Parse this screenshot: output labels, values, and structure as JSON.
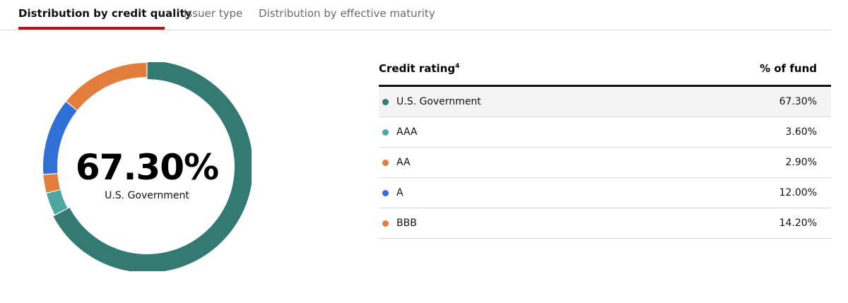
{
  "tabs": [
    {
      "label": "Distribution by credit quality",
      "active": true
    },
    {
      "label": "Issuer type",
      "active": false
    },
    {
      "label": "Distribution by effective maturity",
      "active": false
    }
  ],
  "table": {
    "header_label": "Credit rating",
    "header_footnote": "4",
    "header_value": "% of fund"
  },
  "center": {
    "value": "67.30%",
    "label": "U.S. Government"
  },
  "chart_data": {
    "type": "pie",
    "variant": "donut",
    "categories": [
      "U.S. Government",
      "AAA",
      "AA",
      "A",
      "BBB"
    ],
    "values": [
      67.3,
      3.6,
      2.9,
      12.0,
      14.2
    ],
    "value_labels": [
      "67.30%",
      "3.60%",
      "2.90%",
      "12.00%",
      "14.20%"
    ],
    "colors": [
      "#327a72",
      "#4ea6a0",
      "#e27d3c",
      "#2f6fd6",
      "#e27d3c"
    ],
    "highlighted": "U.S. Government"
  }
}
